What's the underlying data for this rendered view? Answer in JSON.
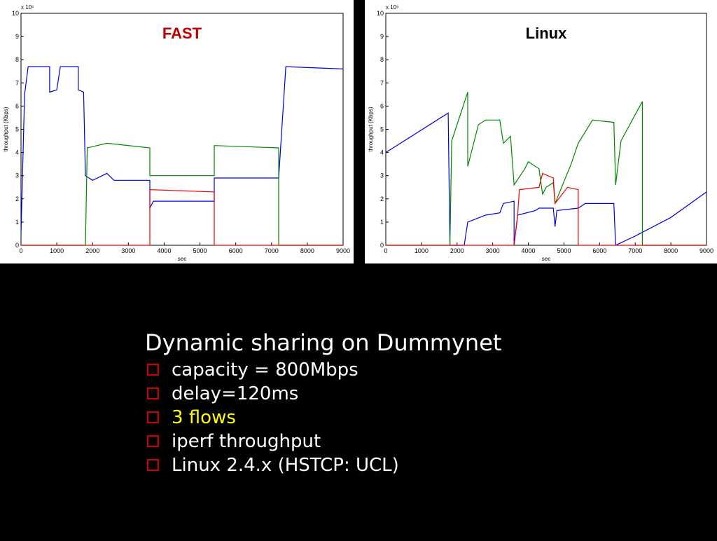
{
  "chart_data": [
    {
      "type": "line",
      "title": "FAST",
      "title_color": "#c00000",
      "xlabel": "sec",
      "ylabel": "throughput (Kbps)",
      "y_scale_label": "x 10⁵",
      "xlim": [
        0,
        9000
      ],
      "xticks": [
        0,
        1000,
        2000,
        3000,
        4000,
        5000,
        6000,
        7000,
        8000,
        9000
      ],
      "ylim": [
        0,
        10
      ],
      "yticks": [
        0,
        1,
        2,
        3,
        4,
        5,
        6,
        7,
        8,
        9,
        10
      ],
      "series": [
        {
          "color": "#0000dd",
          "x": [
            0,
            100,
            200,
            800,
            800,
            1000,
            1100,
            1600,
            1600,
            1750,
            1800,
            2000,
            2400,
            2600,
            3600,
            3600,
            3700,
            5400,
            5400,
            7200,
            7400,
            9000
          ],
          "values": [
            0.5,
            6.5,
            7.7,
            7.7,
            6.6,
            6.7,
            7.7,
            7.7,
            6.7,
            6.6,
            3.0,
            2.8,
            3.1,
            2.8,
            2.8,
            1.6,
            1.9,
            1.9,
            2.9,
            2.9,
            7.7,
            7.6
          ]
        },
        {
          "color": "#008800",
          "x": [
            0,
            1800,
            1850,
            2400,
            3600,
            3600,
            5400,
            5400,
            7200,
            7200,
            9000
          ],
          "values": [
            0,
            0,
            4.2,
            4.4,
            4.2,
            3.0,
            3.0,
            4.3,
            4.2,
            0,
            0
          ]
        },
        {
          "color": "#ee0000",
          "x": [
            0,
            3600,
            3600,
            5400,
            5400,
            9000
          ],
          "values": [
            0,
            0,
            2.4,
            2.3,
            0,
            0
          ]
        }
      ]
    },
    {
      "type": "line",
      "title": "Linux",
      "title_color": "#000000",
      "xlabel": "sec",
      "ylabel": "throughput (Kbps)",
      "y_scale_label": "x 10⁵",
      "xlim": [
        0,
        9000
      ],
      "xticks": [
        0,
        1000,
        2000,
        3000,
        4000,
        5000,
        6000,
        7000,
        8000,
        9000
      ],
      "ylim": [
        0,
        10
      ],
      "yticks": [
        0,
        1,
        2,
        3,
        4,
        5,
        6,
        7,
        8,
        9,
        10
      ],
      "series": [
        {
          "color": "#0000dd",
          "x": [
            0,
            1750,
            1800,
            2200,
            2300,
            2800,
            3200,
            3300,
            3600,
            3600,
            3700,
            4200,
            4300,
            4700,
            4750,
            4800,
            5400,
            5600,
            6400,
            6450,
            7000,
            8000,
            9000
          ],
          "values": [
            4.0,
            5.7,
            0,
            0,
            1.0,
            1.3,
            1.4,
            1.8,
            1.9,
            0,
            1.3,
            1.5,
            1.6,
            1.6,
            0.8,
            1.5,
            1.6,
            1.8,
            1.8,
            0,
            0.4,
            1.2,
            2.3
          ]
        },
        {
          "color": "#008800",
          "x": [
            0,
            1800,
            1850,
            2300,
            2300,
            2600,
            2800,
            3200,
            3300,
            3500,
            3600,
            3900,
            4000,
            4300,
            4400,
            4500,
            4700,
            4750,
            5200,
            5400,
            5800,
            6400,
            6450,
            6600,
            7200,
            7200,
            9000
          ],
          "values": [
            0,
            0,
            4.5,
            6.6,
            3.4,
            5.2,
            5.4,
            5.4,
            4.4,
            4.7,
            2.6,
            3.3,
            3.6,
            3.3,
            2.2,
            2.5,
            2.7,
            1.8,
            3.5,
            4.4,
            5.4,
            5.3,
            2.6,
            4.5,
            6.2,
            0,
            0
          ]
        },
        {
          "color": "#ee0000",
          "x": [
            0,
            3600,
            3700,
            3750,
            4300,
            4400,
            4700,
            4750,
            5100,
            5400,
            5400,
            9000
          ],
          "values": [
            0,
            0,
            1.3,
            2.4,
            2.5,
            3.1,
            2.9,
            1.8,
            2.5,
            2.4,
            0,
            0
          ]
        }
      ]
    }
  ],
  "slide": {
    "heading": "Dynamic sharing on Dummynet",
    "bullets": [
      {
        "text": "capacity = 800Mbps",
        "color": "#ffffff"
      },
      {
        "text": "delay=120ms",
        "color": "#ffffff"
      },
      {
        "text": "3 flows",
        "color": "#ffff00"
      },
      {
        "text": "iperf throughput",
        "color": "#ffffff"
      },
      {
        "text": "Linux 2.4.x (HSTCP: UCL)",
        "color": "#ffffff"
      }
    ]
  }
}
